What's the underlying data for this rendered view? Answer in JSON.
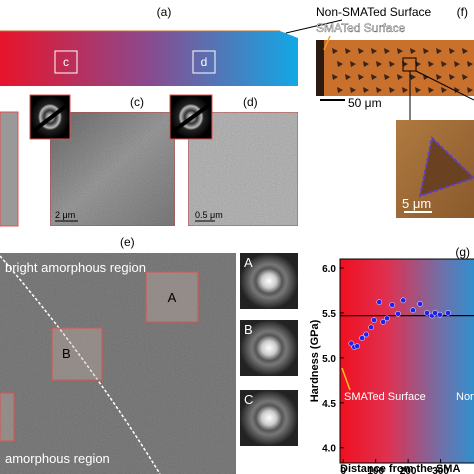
{
  "panel_a": {
    "label": "(a)",
    "annotation": "Non-SMATed Surface",
    "boxes": [
      "c",
      "d"
    ]
  },
  "panel_c": {
    "label": "(c)",
    "scale_bar": "2 μm"
  },
  "panel_d": {
    "label": "(d)",
    "scale_bar": "0.5 μm"
  },
  "panel_e": {
    "label": "(e)",
    "regions": [
      "bright amorphous region",
      "amorphous region"
    ],
    "boxes": [
      "A",
      "B"
    ],
    "fft_insets": [
      "A",
      "B",
      "C"
    ]
  },
  "panel_f": {
    "label": "(f)",
    "annotation": "SMATed Surface",
    "scale_bar": "50 μm",
    "inset_scale_bar": "5 μm"
  },
  "chart_data": {
    "type": "scatter",
    "label": "(g)",
    "y_label": "Hardness (GPa)",
    "x_label": "Distance from the SMA",
    "annotations": [
      "SMATed Surface",
      "Non"
    ],
    "x": [
      25,
      34,
      43,
      58,
      71,
      86,
      95,
      111,
      123,
      135,
      151,
      169,
      185,
      215,
      237,
      258,
      274,
      283,
      298,
      323
    ],
    "series": [
      {
        "color": "#2020f0",
        "values": [
          5.16,
          5.12,
          5.13,
          5.22,
          5.26,
          5.34,
          5.42,
          5.62,
          5.4,
          5.44,
          5.59,
          5.49,
          5.64,
          5.53,
          5.6,
          5.5,
          5.47,
          5.5,
          5.48,
          5.5
        ]
      }
    ],
    "reference_line": 5.47,
    "reference_color": "#000000",
    "xlim": [
      -10,
      400
    ],
    "ylim": [
      3.83,
      6.1
    ],
    "xticks": [
      0,
      100,
      200,
      300
    ],
    "yticks": [
      {
        "value": 4,
        "label": "4.0"
      },
      {
        "value": 4.5,
        "label": "4.5"
      },
      {
        "value": 5,
        "label": "5.0"
      },
      {
        "value": 5.5,
        "label": "5.5"
      },
      {
        "value": 6,
        "label": "6.0"
      }
    ]
  }
}
